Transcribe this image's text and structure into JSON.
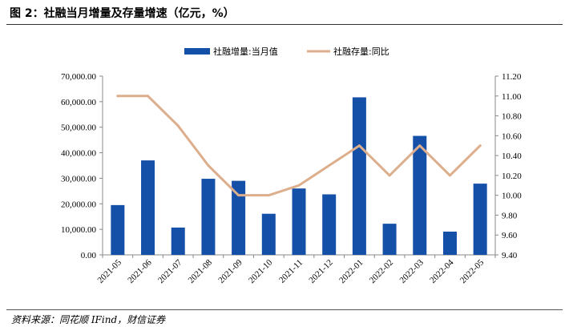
{
  "figure": {
    "title": "图 2：社融当月增量及存量增速（亿元，%）",
    "source": "资料来源：同花顺 IFind，财信证券"
  },
  "chart_data": {
    "type": "bar",
    "categories": [
      "2021-05",
      "2021-06",
      "2021-07",
      "2021-08",
      "2021-09",
      "2021-10",
      "2021-11",
      "2021-12",
      "2022-01",
      "2022-02",
      "2022-03",
      "2022-04",
      "2022-05"
    ],
    "series": [
      {
        "name": "社融增量:当月值",
        "type": "bar",
        "axis": "left",
        "color": "#1550a8",
        "values": [
          19500,
          37000,
          10700,
          29800,
          29000,
          16100,
          26000,
          23700,
          61700,
          12200,
          46600,
          9100,
          27900
        ]
      },
      {
        "name": "社融存量:同比",
        "type": "line",
        "axis": "right",
        "color": "#dcae8c",
        "values": [
          11.0,
          11.0,
          10.7,
          10.3,
          10.0,
          10.0,
          10.1,
          10.3,
          10.5,
          10.2,
          10.5,
          10.2,
          10.5
        ]
      }
    ],
    "y_left": {
      "ylim": [
        0,
        70000
      ],
      "ticks": [
        "0.00",
        "10,000.00",
        "20,000.00",
        "30,000.00",
        "40,000.00",
        "50,000.00",
        "60,000.00",
        "70,000.00"
      ],
      "tick_values": [
        0,
        10000,
        20000,
        30000,
        40000,
        50000,
        60000,
        70000
      ]
    },
    "y_right": {
      "ylim": [
        9.4,
        11.2
      ],
      "ticks": [
        "9.40",
        "9.60",
        "9.80",
        "10.00",
        "10.20",
        "10.40",
        "10.60",
        "10.80",
        "11.00",
        "11.20"
      ],
      "tick_values": [
        9.4,
        9.6,
        9.8,
        10.0,
        10.2,
        10.4,
        10.6,
        10.8,
        11.0,
        11.2
      ]
    },
    "legend_position": "top-center",
    "grid": false
  }
}
